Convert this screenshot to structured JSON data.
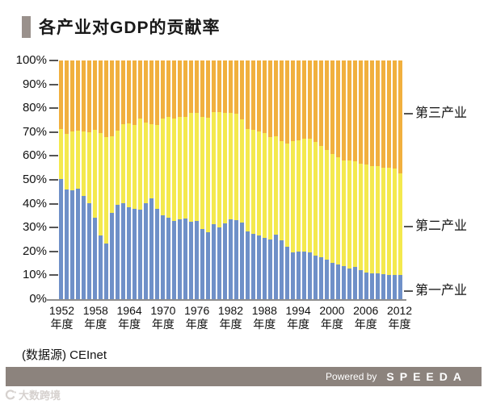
{
  "title": {
    "text": "各产业对GDP的贡献率"
  },
  "source": "(数据源) CEInet",
  "footer": {
    "powered_by": "Powered by",
    "brand": "SPEEDA"
  },
  "watermark": {
    "text": "大数跨境"
  },
  "colors": {
    "accent_marker": "#9a918c",
    "footer_bar": "#8c837d",
    "axis": "#8f8f8f",
    "primary_industry": "#6F90C8",
    "secondary_industry": "#F4E94E",
    "tertiary_industry": "#F1B03E"
  },
  "chart_data": {
    "type": "bar",
    "stacked": true,
    "title": "各产业对GDP的贡献率",
    "xlabel": "",
    "ylabel": "",
    "ylim": [
      0,
      100
    ],
    "grid": false,
    "legend_position": "right",
    "x": [
      1952,
      1953,
      1954,
      1955,
      1956,
      1957,
      1958,
      1959,
      1960,
      1961,
      1962,
      1963,
      1964,
      1965,
      1966,
      1967,
      1968,
      1969,
      1970,
      1971,
      1972,
      1973,
      1974,
      1975,
      1976,
      1977,
      1978,
      1979,
      1980,
      1981,
      1982,
      1983,
      1984,
      1985,
      1986,
      1987,
      1988,
      1989,
      1990,
      1991,
      1992,
      1993,
      1994,
      1995,
      1996,
      1997,
      1998,
      1999,
      2000,
      2001,
      2002,
      2003,
      2004,
      2005,
      2006,
      2007,
      2008,
      2009,
      2010,
      2011,
      2012
    ],
    "x_tick_years": [
      "1952",
      "1958",
      "1964",
      "1970",
      "1976",
      "1982",
      "1988",
      "1994",
      "2000",
      "2006",
      "2012"
    ],
    "x_tick_suffix": "年度",
    "y_ticks": [
      "0%",
      "10%",
      "20%",
      "30%",
      "40%",
      "50%",
      "60%",
      "70%",
      "80%",
      "90%",
      "100%"
    ],
    "series": [
      {
        "name": "第一产业",
        "color": "#6F90C8",
        "values": [
          50.5,
          45.9,
          45.7,
          46.2,
          43.2,
          40.3,
          34.1,
          26.7,
          23.4,
          36.2,
          39.4,
          40.3,
          38.4,
          37.9,
          37.6,
          40.3,
          42.2,
          38.0,
          35.2,
          34.1,
          32.8,
          33.4,
          33.9,
          32.4,
          32.8,
          29.5,
          28.2,
          31.3,
          30.2,
          31.9,
          33.4,
          33.2,
          32.1,
          28.4,
          27.2,
          26.8,
          25.7,
          25.1,
          27.1,
          24.5,
          21.8,
          19.7,
          19.8,
          19.9,
          19.7,
          18.3,
          17.6,
          16.5,
          15.1,
          14.4,
          13.7,
          12.8,
          13.4,
          12.1,
          11.1,
          10.8,
          10.7,
          10.3,
          10.1,
          10.0,
          10.1
        ]
      },
      {
        "name": "第二产业",
        "color": "#F4E94E",
        "values": [
          20.9,
          23.4,
          24.6,
          24.4,
          27.0,
          29.6,
          37.0,
          42.8,
          44.5,
          31.9,
          31.2,
          33.0,
          35.3,
          35.1,
          38.2,
          33.7,
          31.0,
          34.9,
          40.5,
          42.2,
          43.0,
          43.0,
          42.6,
          45.7,
          45.4,
          46.9,
          47.9,
          47.1,
          48.2,
          46.1,
          44.8,
          44.4,
          43.1,
          42.9,
          43.7,
          43.6,
          43.8,
          42.8,
          41.3,
          41.8,
          43.4,
          46.6,
          46.6,
          47.2,
          47.5,
          47.5,
          46.6,
          46.0,
          45.7,
          44.9,
          44.5,
          45.3,
          44.5,
          44.8,
          45.3,
          45.1,
          45.2,
          44.7,
          44.9,
          44.7,
          42.7
        ]
      },
      {
        "name": "第三产业",
        "color": "#F1B03E",
        "values": [
          28.6,
          30.7,
          29.7,
          29.4,
          29.8,
          30.1,
          28.9,
          30.5,
          32.1,
          31.9,
          29.4,
          26.7,
          26.3,
          27.0,
          24.2,
          26.0,
          26.8,
          27.1,
          24.3,
          23.7,
          24.2,
          23.6,
          23.5,
          21.9,
          21.8,
          23.6,
          23.9,
          21.6,
          21.6,
          22.0,
          21.8,
          22.4,
          24.8,
          28.7,
          29.1,
          29.6,
          30.5,
          32.1,
          31.6,
          33.7,
          34.8,
          33.7,
          33.6,
          32.9,
          32.8,
          34.2,
          35.8,
          37.5,
          39.2,
          40.7,
          41.8,
          41.9,
          42.1,
          43.1,
          43.6,
          44.1,
          44.1,
          45.0,
          45.0,
          45.3,
          47.2
        ]
      }
    ]
  }
}
